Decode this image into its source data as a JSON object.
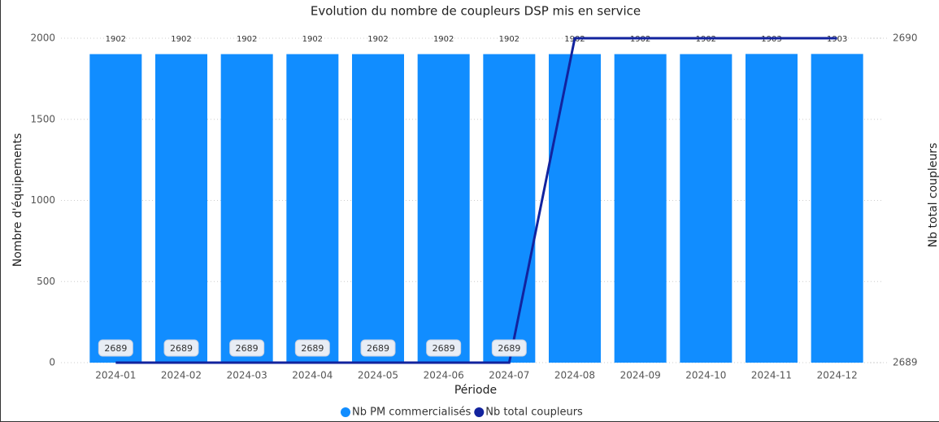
{
  "chart_data": {
    "type": "bar_line",
    "title": "Evolution du nombre de coupleurs DSP mis en service",
    "x_label": "Période",
    "y_label": "Nombre d'équipements",
    "y2_label": "Nb total coupleurs",
    "categories": [
      "2024-01",
      "2024-02",
      "2024-03",
      "2024-04",
      "2024-05",
      "2024-06",
      "2024-07",
      "2024-08",
      "2024-09",
      "2024-10",
      "2024-11",
      "2024-12"
    ],
    "series": [
      {
        "name": "Nb PM commercialisés",
        "type": "bar",
        "color": "#118dff",
        "values": [
          1902,
          1902,
          1902,
          1902,
          1902,
          1902,
          1902,
          1902,
          1902,
          1902,
          1903,
          1903
        ]
      },
      {
        "name": "Nb total coupleurs",
        "type": "line",
        "axis": "y2",
        "color": "#12239e",
        "values": [
          2689,
          2689,
          2689,
          2689,
          2689,
          2689,
          2689,
          2690,
          2690,
          2690,
          2690,
          2690
        ]
      }
    ],
    "ylim": [
      0,
      2000
    ],
    "yticks": [
      0,
      500,
      1000,
      1500,
      2000
    ],
    "y2lim": [
      2689,
      2690
    ],
    "y2ticks": [
      2689,
      2690
    ],
    "grid": true,
    "legend": "bottom"
  }
}
